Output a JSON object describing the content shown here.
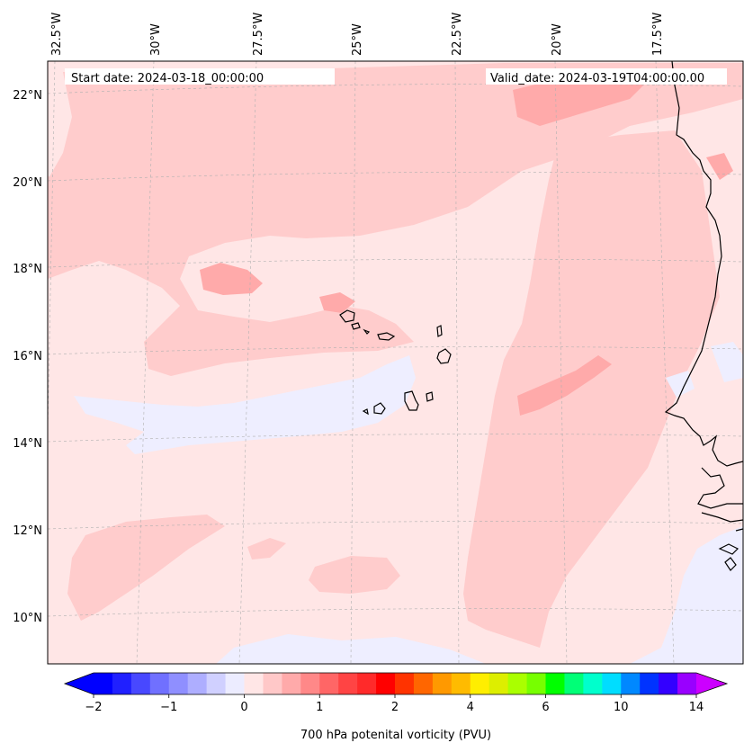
{
  "map": {
    "start_date_text": "Start date: 2024-03-18_00:00:00",
    "valid_date_text": "Valid_date: 2024-03-19T04:00:00.00",
    "lon_labels": [
      "32.5°W",
      "30°W",
      "27.5°W",
      "25°W",
      "22.5°W",
      "20°W",
      "17.5°W"
    ],
    "lat_labels": [
      "22°N",
      "20°N",
      "18°N",
      "16°N",
      "14°N",
      "12°N",
      "10°N"
    ],
    "colors": {
      "background_field": "#ffe6e6",
      "weak_positive": "#ffcccc",
      "moderate_positive": "#ffaaaa",
      "weak_negative": "#eeeeff",
      "coastline": "#000000",
      "gridline": "#b0b0b0"
    }
  },
  "colorbar": {
    "label": "700 hPa potenital vorticity (PVU)",
    "tick_labels": [
      "−2",
      "−1",
      "0",
      "1",
      "2",
      "4",
      "6",
      "10",
      "14"
    ],
    "colors": [
      "#0000ff",
      "#2020ff",
      "#4848ff",
      "#7070ff",
      "#8f8fff",
      "#aeaeff",
      "#d0d0ff",
      "#ececff",
      "#ffe6e6",
      "#ffc8c8",
      "#ffaaaa",
      "#ff8888",
      "#ff6666",
      "#ff4444",
      "#ff2a2a",
      "#ff0000",
      "#ff3300",
      "#ff6600",
      "#ff9900",
      "#ffbb00",
      "#ffee00",
      "#ddee00",
      "#aaff00",
      "#77ff00",
      "#00ff00",
      "#00ff77",
      "#00ffcc",
      "#00ddff",
      "#0088ff",
      "#0033ff",
      "#3300ff",
      "#9900ff"
    ],
    "extend_low_color": "#0000ff",
    "extend_high_color": "#cc00ff"
  }
}
